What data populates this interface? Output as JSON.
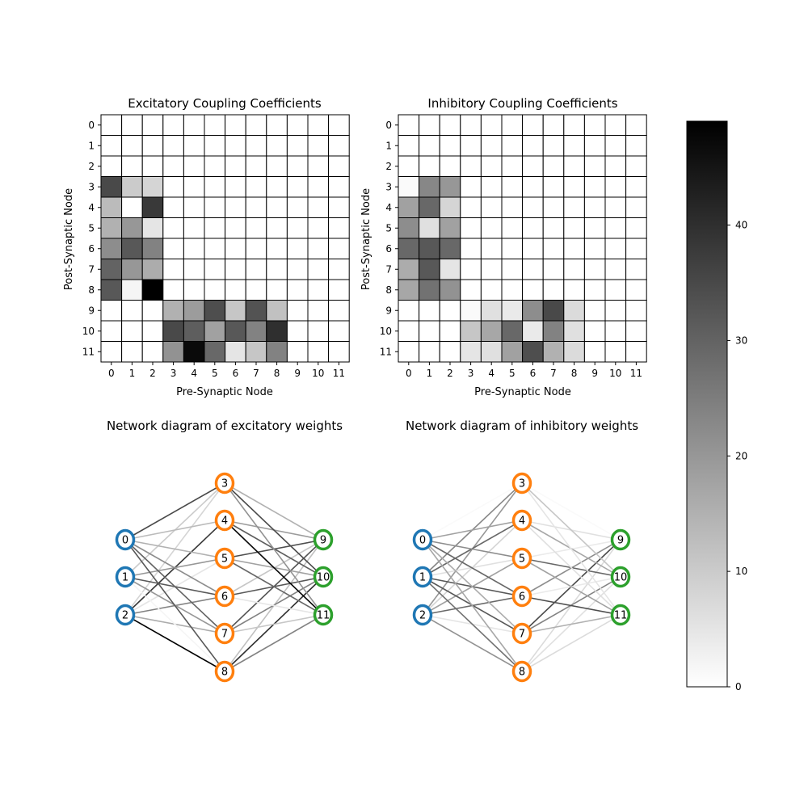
{
  "chart_data": [
    {
      "type": "heatmap",
      "title": "Excitatory Coupling Coefficients",
      "xlabel": "Pre-Synaptic Node",
      "ylabel": "Post-Synaptic Node",
      "x_ticks": [
        "0",
        "1",
        "2",
        "3",
        "4",
        "5",
        "6",
        "7",
        "8",
        "9",
        "10",
        "11"
      ],
      "y_ticks": [
        "0",
        "1",
        "2",
        "3",
        "4",
        "5",
        "6",
        "7",
        "8",
        "9",
        "10",
        "11"
      ],
      "values": [
        [
          0,
          0,
          0,
          0,
          0,
          0,
          0,
          0,
          0,
          0,
          0,
          0
        ],
        [
          0,
          0,
          0,
          0,
          0,
          0,
          0,
          0,
          0,
          0,
          0,
          0
        ],
        [
          0,
          0,
          0,
          0,
          0,
          0,
          0,
          0,
          0,
          0,
          0,
          0
        ],
        [
          35,
          10,
          8,
          0,
          0,
          0,
          0,
          0,
          0,
          0,
          0,
          0
        ],
        [
          13,
          0,
          38,
          0,
          0,
          0,
          0,
          0,
          0,
          0,
          0,
          0
        ],
        [
          15,
          20,
          5,
          0,
          0,
          0,
          0,
          0,
          0,
          0,
          0,
          0
        ],
        [
          22,
          32,
          24,
          0,
          0,
          0,
          0,
          0,
          0,
          0,
          0,
          0
        ],
        [
          30,
          20,
          16,
          0,
          0,
          0,
          0,
          0,
          0,
          0,
          0,
          0
        ],
        [
          32,
          2,
          49,
          0,
          0,
          0,
          0,
          0,
          0,
          0,
          0,
          0
        ],
        [
          0,
          0,
          0,
          15,
          19,
          34,
          11,
          33,
          12,
          0,
          0,
          0
        ],
        [
          0,
          0,
          0,
          35,
          31,
          18,
          32,
          24,
          40,
          0,
          0,
          0
        ],
        [
          0,
          0,
          0,
          21,
          47,
          29,
          5,
          11,
          24,
          0,
          0,
          0
        ]
      ]
    },
    {
      "type": "heatmap",
      "title": "Inhibitory Coupling Coefficients",
      "xlabel": "Pre-Synaptic Node",
      "ylabel": "Post-Synaptic Node",
      "x_ticks": [
        "0",
        "1",
        "2",
        "3",
        "4",
        "5",
        "6",
        "7",
        "8",
        "9",
        "10",
        "11"
      ],
      "y_ticks": [
        "0",
        "1",
        "2",
        "3",
        "4",
        "5",
        "6",
        "7",
        "8",
        "9",
        "10",
        "11"
      ],
      "values": [
        [
          0,
          0,
          0,
          0,
          0,
          0,
          0,
          0,
          0,
          0,
          0,
          0
        ],
        [
          0,
          0,
          0,
          0,
          0,
          0,
          0,
          0,
          0,
          0,
          0,
          0
        ],
        [
          0,
          0,
          0,
          0,
          0,
          0,
          0,
          0,
          0,
          0,
          0,
          0
        ],
        [
          1,
          23,
          20,
          0,
          0,
          0,
          0,
          0,
          0,
          0,
          0,
          0
        ],
        [
          18,
          29,
          8,
          0,
          0,
          0,
          0,
          0,
          0,
          0,
          0,
          0
        ],
        [
          22,
          6,
          18,
          0,
          0,
          0,
          0,
          0,
          0,
          0,
          0,
          0
        ],
        [
          29,
          32,
          29,
          0,
          0,
          0,
          0,
          0,
          0,
          0,
          0,
          0
        ],
        [
          16,
          32,
          5,
          0,
          0,
          0,
          0,
          0,
          0,
          0,
          0,
          0
        ],
        [
          17,
          27,
          21,
          0,
          0,
          0,
          0,
          0,
          0,
          0,
          0,
          0
        ],
        [
          0,
          0,
          0,
          1,
          6,
          4,
          22,
          35,
          7,
          0,
          0,
          0
        ],
        [
          0,
          0,
          0,
          11,
          17,
          29,
          4,
          24,
          6,
          0,
          0,
          0
        ],
        [
          0,
          0,
          0,
          5,
          6,
          18,
          34,
          15,
          7,
          0,
          0,
          0
        ]
      ]
    },
    {
      "type": "network",
      "title": "Network diagram of excitatory weights",
      "nodes": [
        {
          "id": "0",
          "layer": "input"
        },
        {
          "id": "1",
          "layer": "input"
        },
        {
          "id": "2",
          "layer": "input"
        },
        {
          "id": "3",
          "layer": "hidden"
        },
        {
          "id": "4",
          "layer": "hidden"
        },
        {
          "id": "5",
          "layer": "hidden"
        },
        {
          "id": "6",
          "layer": "hidden"
        },
        {
          "id": "7",
          "layer": "hidden"
        },
        {
          "id": "8",
          "layer": "hidden"
        },
        {
          "id": "9",
          "layer": "output"
        },
        {
          "id": "10",
          "layer": "output"
        },
        {
          "id": "11",
          "layer": "output"
        }
      ],
      "weights_source": "Excitatory Coupling Coefficients"
    },
    {
      "type": "network",
      "title": "Network diagram of inhibitory weights",
      "nodes": [
        {
          "id": "0",
          "layer": "input"
        },
        {
          "id": "1",
          "layer": "input"
        },
        {
          "id": "2",
          "layer": "input"
        },
        {
          "id": "3",
          "layer": "hidden"
        },
        {
          "id": "4",
          "layer": "hidden"
        },
        {
          "id": "5",
          "layer": "hidden"
        },
        {
          "id": "6",
          "layer": "hidden"
        },
        {
          "id": "7",
          "layer": "hidden"
        },
        {
          "id": "8",
          "layer": "hidden"
        },
        {
          "id": "9",
          "layer": "output"
        },
        {
          "id": "10",
          "layer": "output"
        },
        {
          "id": "11",
          "layer": "output"
        }
      ],
      "weights_source": "Inhibitory Coupling Coefficients"
    }
  ],
  "colorbar": {
    "min": 0,
    "max": 49,
    "ticks": [
      0,
      10,
      20,
      30,
      40
    ],
    "colormap": "gray_r"
  },
  "layer_colors": {
    "input": "#1f77b4",
    "hidden": "#ff7f0e",
    "output": "#2ca02c"
  }
}
